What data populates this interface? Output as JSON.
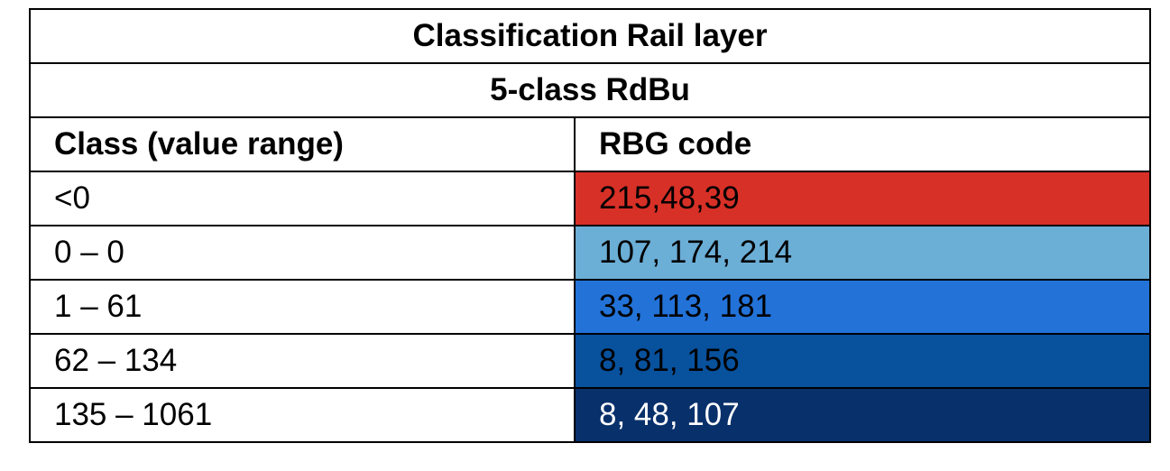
{
  "table": {
    "title": "Classification Rail layer",
    "subtitle": "5-class RdBu",
    "header": [
      "Class (value range)",
      "RBG code"
    ],
    "rows": [
      [
        "<0",
        "215,48,39"
      ],
      [
        "0 – 0",
        "107, 174, 214"
      ],
      [
        "1 – 61",
        "33, 113, 181"
      ],
      [
        "62 – 134",
        "8, 81, 156"
      ],
      [
        "135 – 1061",
        "8, 48, 107"
      ]
    ]
  }
}
